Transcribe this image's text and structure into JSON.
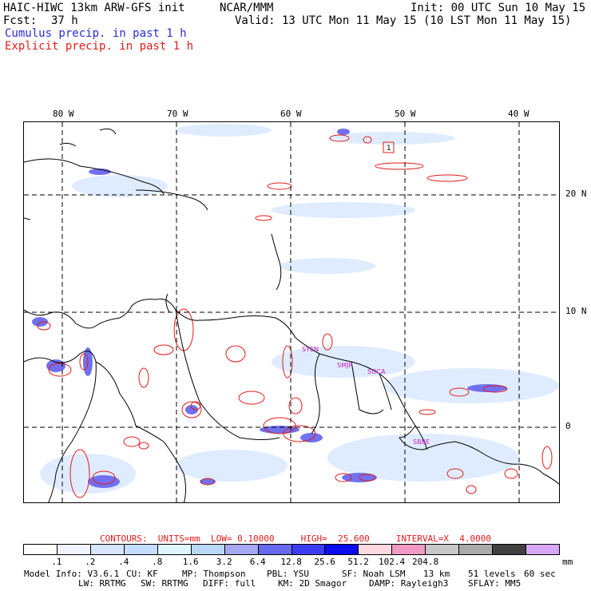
{
  "header": {
    "model_title": "HAIC-HIWC 13km ARW-GFS init",
    "org": "NCAR/MMM",
    "init": "Init: 00 UTC Sun 10 May 15",
    "fcst_label": "Fcst:",
    "fcst_value": "37 h",
    "valid": "Valid: 13 UTC Mon 11 May 15 (10 LST Mon 11 May 15)",
    "field1": "Cumulus precip. in past 1 h",
    "field2": "Explicit precip. in past 1 h"
  },
  "map": {
    "lon_labels": [
      "80 W",
      "70 W",
      "60 W",
      "50 W",
      "40 W"
    ],
    "lat_labels": [
      "20 N",
      "10 N",
      "0"
    ],
    "site_labels": [
      "SYEN",
      "SMJP",
      "SOCA",
      "SBBE"
    ],
    "box_marker": "1"
  },
  "contour_info": "CONTOURS:  UNITS=mm  LOW= 0.10000     HIGH=  25.600     INTERVAL=X  4.0000",
  "colorbar": {
    "colors": [
      "#ffffff",
      "#f0f4ff",
      "#d8e6ff",
      "#c4dcff",
      "#e0f6ff",
      "#bcd8f8",
      "#a8a8f0",
      "#6868f0",
      "#3c3cf4",
      "#0c0cf0",
      "#ffd8e0",
      "#f29ac4",
      "#c8c8c8",
      "#aaaaaa",
      "#404040",
      "#d8a8f8"
    ],
    "labels": [
      ".1",
      ".2",
      ".4",
      ".8",
      "1.6",
      "3.2",
      "6.4",
      "12.8",
      "25.6",
      "51.2",
      "102.4",
      "204.8"
    ],
    "unit": "mm"
  },
  "footer": {
    "line1": [
      "Model Info: V3.6.1",
      "CU: KF",
      "MP: Thompson",
      "PBL: YSU",
      "SF: Noah LSM",
      "13 km",
      "51 levels",
      "60 sec"
    ],
    "line2": [
      "LW: RRTMG",
      "SW: RRTMG",
      "DIFF: full",
      "KM: 2D Smagor",
      "DAMP: Rayleigh3",
      "SFLAY: MM5"
    ]
  }
}
